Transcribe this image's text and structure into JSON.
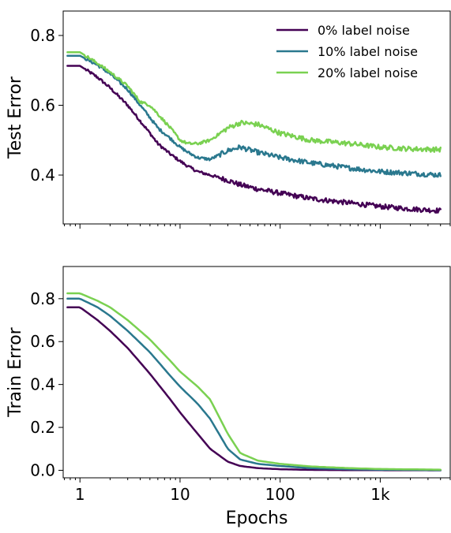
{
  "chart_data": [
    {
      "type": "line",
      "id": "test",
      "ylabel": "Test Error",
      "xlabel": "",
      "xscale": "log",
      "xlim": [
        0.68,
        5000
      ],
      "ylim": [
        0.26,
        0.87
      ],
      "yticks": [
        0.4,
        0.6,
        0.8
      ],
      "ytick_labels": [
        "0.4",
        "0.6",
        "0.8"
      ],
      "xticks": [
        1,
        10,
        100,
        1000
      ],
      "xtick_labels": [
        "",
        "",
        "",
        ""
      ],
      "legend": {
        "position": "top-right"
      },
      "series": [
        {
          "name": "0% label noise",
          "color": "#440154",
          "x": [
            0.75,
            1,
            1.5,
            2,
            3,
            4,
            5,
            6,
            8,
            10,
            12,
            15,
            20,
            30,
            40,
            60,
            100,
            200,
            500,
            1000,
            2000,
            4000
          ],
          "y": [
            0.713,
            0.713,
            0.68,
            0.65,
            0.6,
            0.555,
            0.52,
            0.49,
            0.46,
            0.44,
            0.425,
            0.41,
            0.4,
            0.385,
            0.372,
            0.36,
            0.348,
            0.333,
            0.32,
            0.31,
            0.303,
            0.298
          ]
        },
        {
          "name": "10% label noise",
          "color": "#2a788e",
          "x": [
            0.75,
            1,
            1.5,
            2,
            3,
            4,
            5,
            6,
            8,
            10,
            12,
            15,
            20,
            30,
            40,
            60,
            100,
            200,
            500,
            1000,
            2000,
            4000
          ],
          "y": [
            0.742,
            0.742,
            0.715,
            0.69,
            0.645,
            0.6,
            0.565,
            0.535,
            0.505,
            0.48,
            0.465,
            0.45,
            0.445,
            0.47,
            0.48,
            0.465,
            0.45,
            0.435,
            0.42,
            0.41,
            0.405,
            0.4
          ]
        },
        {
          "name": "20% label noise",
          "color": "#7ad151",
          "x": [
            0.75,
            1,
            1.5,
            2,
            3,
            4,
            5,
            6,
            8,
            10,
            12,
            15,
            20,
            30,
            40,
            60,
            100,
            200,
            500,
            1000,
            2000,
            4000
          ],
          "y": [
            0.752,
            0.752,
            0.72,
            0.695,
            0.655,
            0.61,
            0.6,
            0.575,
            0.535,
            0.5,
            0.49,
            0.49,
            0.5,
            0.535,
            0.55,
            0.545,
            0.52,
            0.5,
            0.49,
            0.48,
            0.475,
            0.473
          ]
        }
      ]
    },
    {
      "type": "line",
      "id": "train",
      "ylabel": "Train Error",
      "xlabel": "Epochs",
      "xscale": "log",
      "xlim": [
        0.68,
        5000
      ],
      "ylim": [
        -0.035,
        0.95
      ],
      "yticks": [
        0.0,
        0.2,
        0.4,
        0.6,
        0.8
      ],
      "ytick_labels": [
        "0.0",
        "0.2",
        "0.4",
        "0.6",
        "0.8"
      ],
      "xticks": [
        1,
        10,
        100,
        1000
      ],
      "xtick_labels": [
        "1",
        "10",
        "100",
        "1k"
      ],
      "series": [
        {
          "name": "0% label noise",
          "color": "#440154",
          "x": [
            0.75,
            1,
            1.5,
            2,
            3,
            5,
            8,
            10,
            15,
            20,
            30,
            40,
            60,
            100,
            200,
            500,
            1000,
            4000
          ],
          "y": [
            0.76,
            0.76,
            0.7,
            0.65,
            0.57,
            0.45,
            0.33,
            0.27,
            0.17,
            0.1,
            0.04,
            0.02,
            0.01,
            0.005,
            0.002,
            0.001,
            0.0005,
            0.0
          ]
        },
        {
          "name": "10% label noise",
          "color": "#2a788e",
          "x": [
            0.75,
            1,
            1.5,
            2,
            3,
            5,
            8,
            10,
            15,
            20,
            30,
            40,
            60,
            100,
            200,
            500,
            1000,
            4000
          ],
          "y": [
            0.8,
            0.8,
            0.76,
            0.72,
            0.65,
            0.55,
            0.44,
            0.39,
            0.31,
            0.24,
            0.1,
            0.05,
            0.03,
            0.02,
            0.01,
            0.005,
            0.003,
            0.001
          ]
        },
        {
          "name": "20% label noise",
          "color": "#7ad151",
          "x": [
            0.75,
            1,
            1.5,
            2,
            3,
            5,
            8,
            10,
            15,
            20,
            30,
            40,
            60,
            100,
            200,
            500,
            1000,
            4000
          ],
          "y": [
            0.825,
            0.825,
            0.79,
            0.76,
            0.7,
            0.61,
            0.51,
            0.46,
            0.39,
            0.33,
            0.17,
            0.08,
            0.045,
            0.03,
            0.018,
            0.01,
            0.006,
            0.003
          ]
        }
      ]
    }
  ]
}
